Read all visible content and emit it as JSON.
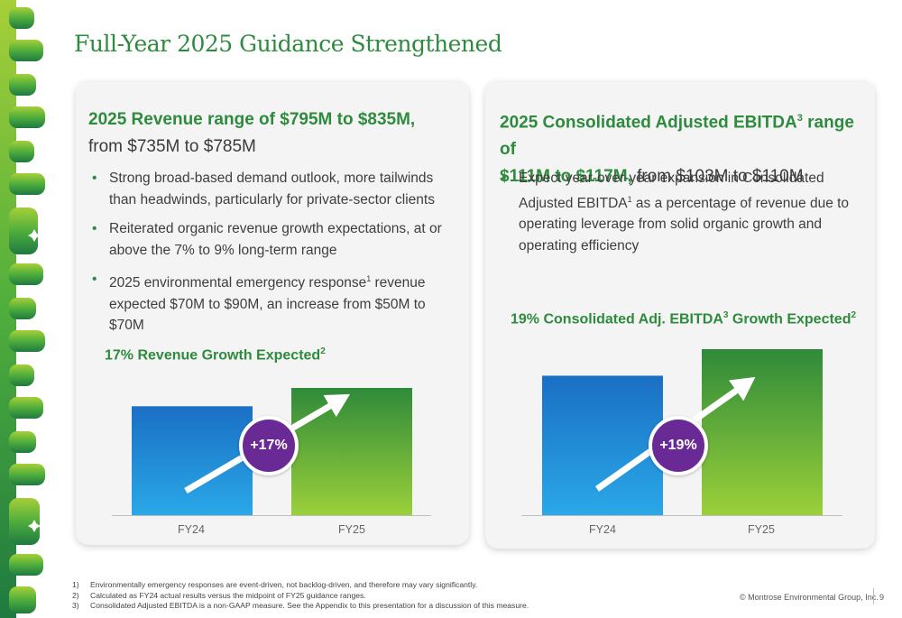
{
  "title": "Full-Year 2025 Guidance Strengthened",
  "colors": {
    "green": "#2e8b3e",
    "blue": "#1e88d8",
    "purple": "#6a2a96"
  },
  "left": {
    "head_bold": "2025 Revenue range of $795M to $835M,",
    "head_rest": "from $735M to $785M",
    "bullets": [
      {
        "text": "Strong broad-based demand outlook, more tailwinds than headwinds, particularly for private-sector clients"
      },
      {
        "text": "Reiterated organic revenue growth expectations, at or above the 7% to 9% long-term range"
      },
      {
        "pre": "2025 environmental emergency response",
        "sup": "1",
        "post": " revenue expected $70M to $90M, an increase from $50M to $70M"
      }
    ],
    "chart_title": "17% Revenue Growth Expected",
    "chart_title_sup": "2",
    "badge": "+17%"
  },
  "right": {
    "head_bold1": "2025 Consolidated Adjusted EBITDA",
    "head_sup": "3",
    "head_bold2": " range of",
    "head_bold3": "$111M to $117M,",
    "head_rest": " from $103M to $110M",
    "bullet_pre": "Expect year-over-year expansion in Consolidated Adjusted EBITDA",
    "bullet_sup": "1",
    "bullet_post": " as a percentage of revenue due to operating leverage from solid organic growth and operating efficiency",
    "chart_title_a": "19% Consolidated Adj. EBITDA",
    "chart_title_sup1": "3",
    "chart_title_b": " Growth Expected",
    "chart_title_sup2": "2",
    "badge": "+19%"
  },
  "chart_data": [
    {
      "type": "bar",
      "categories": [
        "FY24",
        "FY25"
      ],
      "values": [
        0.856,
        1.0
      ],
      "series_colors": [
        "#1e88d8",
        "#3d9b3a"
      ]
    },
    {
      "type": "bar",
      "categories": [
        "FY24",
        "FY25"
      ],
      "values": [
        0.84,
        1.0
      ],
      "series_colors": [
        "#1e88d8",
        "#3d9b3a"
      ]
    }
  ],
  "footnotes": [
    {
      "n": "1)",
      "text": "Environmentally emergency responses are event-driven, not backlog-driven, and therefore may vary significantly."
    },
    {
      "n": "2)",
      "text": "Calculated as FY24 actual results versus the midpoint of FY25 guidance ranges."
    },
    {
      "n": "3)",
      "text": "Consolidated Adjusted EBITDA is a non-GAAP measure. See the Appendix to this presentation for a discussion of this measure."
    }
  ],
  "copyright": "© Montrose Environmental Group, Inc.",
  "page_number": "9"
}
